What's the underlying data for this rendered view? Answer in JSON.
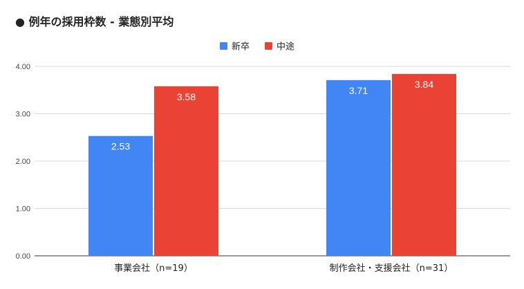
{
  "chart_data": {
    "type": "bar",
    "title": "● 例年の採用枠数 - 業態別平均",
    "categories": [
      "事業会社（n=19）",
      "制作会社・支援会社（n=31）"
    ],
    "series": [
      {
        "name": "新卒",
        "color": "#4285f4",
        "values": [
          2.53,
          3.71
        ],
        "labels": [
          "2.53",
          "3.71"
        ]
      },
      {
        "name": "中途",
        "color": "#ea4335",
        "values": [
          3.58,
          3.84
        ],
        "labels": [
          "3.58",
          "3.84"
        ]
      }
    ],
    "ylim": [
      0,
      4
    ],
    "yticks": [
      0,
      1,
      2,
      3,
      4
    ],
    "ytick_labels": [
      "0.00",
      "1.00",
      "2.00",
      "3.00",
      "4.00"
    ],
    "xlabel": "",
    "ylabel": "",
    "grid": true,
    "legend_position": "top-center"
  }
}
